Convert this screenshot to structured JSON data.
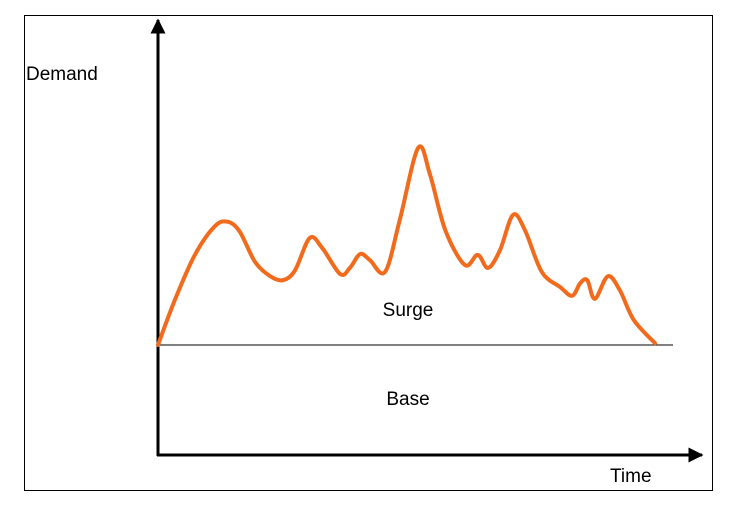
{
  "chart_data": {
    "type": "line",
    "y_label": "Demand",
    "x_label": "Time",
    "annotations": [
      "Surge",
      "Base"
    ],
    "baseline": 25.3,
    "xlim": [
      0,
      100
    ],
    "ylim": [
      0,
      100
    ],
    "series": [
      {
        "color": "#f26b1d",
        "x": [
          0,
          3.1,
          6.8,
          10.5,
          12.9,
          15.1,
          17.9,
          20.7,
          23.1,
          25.3,
          28.0,
          30.3,
          33.6,
          35.4,
          37.3,
          39.1,
          41.9,
          44.6,
          48.0,
          50.2,
          53.0,
          56.6,
          59.0,
          60.9,
          63.1,
          65.5,
          67.7,
          70.8,
          74.2,
          76.4,
          77.9,
          79.2,
          80.6,
          83.0,
          85.2,
          87.8,
          91.7
        ],
        "values": [
          25.3,
          35.6,
          46.0,
          52.6,
          53.6,
          51.3,
          44.4,
          41.1,
          40.2,
          42.5,
          49.9,
          47.6,
          41.6,
          43.0,
          46.2,
          44.8,
          42.1,
          54.0,
          70.6,
          64.4,
          51.7,
          43.7,
          46.0,
          43.0,
          47.1,
          55.2,
          51.7,
          42.1,
          38.6,
          36.6,
          39.5,
          40.2,
          35.9,
          41.1,
          37.9,
          31.0,
          25.7
        ]
      }
    ]
  }
}
